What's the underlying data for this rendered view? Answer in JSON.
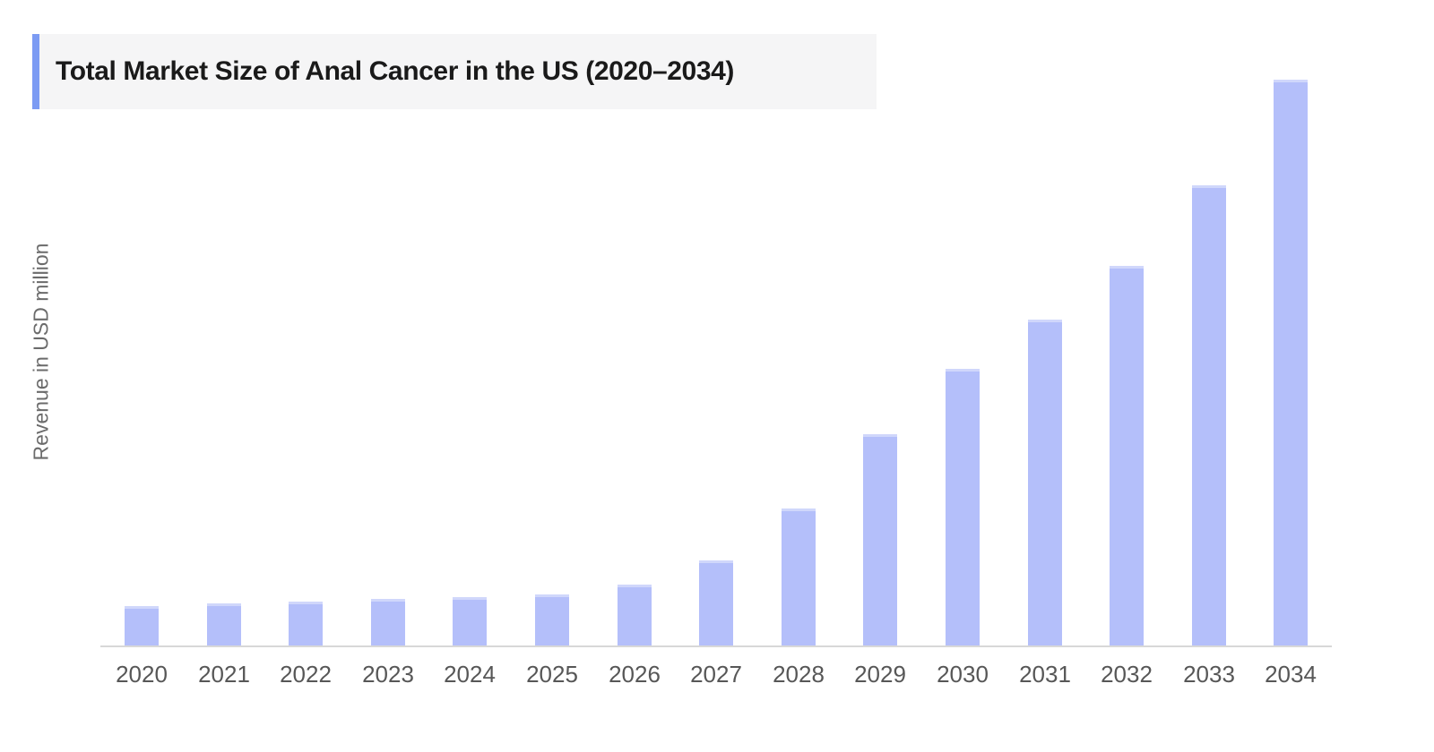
{
  "chart_data": {
    "type": "bar",
    "title": "Total Market Size of Anal Cancer in the US (2020–2034)",
    "xlabel": "",
    "ylabel": "Revenue in USD million",
    "categories": [
      "2020",
      "2021",
      "2022",
      "2023",
      "2024",
      "2025",
      "2026",
      "2027",
      "2028",
      "2029",
      "2030",
      "2031",
      "2032",
      "2033",
      "2034"
    ],
    "values": [
      45,
      48,
      50,
      53,
      55,
      58,
      69,
      96,
      154,
      237,
      310,
      365,
      425,
      515,
      633
    ],
    "ylim": [
      0,
      700
    ],
    "y_axis_ticks_visible": false,
    "grid": false,
    "legend": false,
    "colors": {
      "bar_fill": "#b4bffa",
      "bar_top_edge": "#d0d7fb",
      "title_accent": "#7c9bf3",
      "title_background": "#f5f5f6",
      "title_text": "#1a1a1a",
      "axis_line": "#d8d8d8",
      "tick_label": "#575757",
      "y_label": "#6b6b6b"
    }
  }
}
